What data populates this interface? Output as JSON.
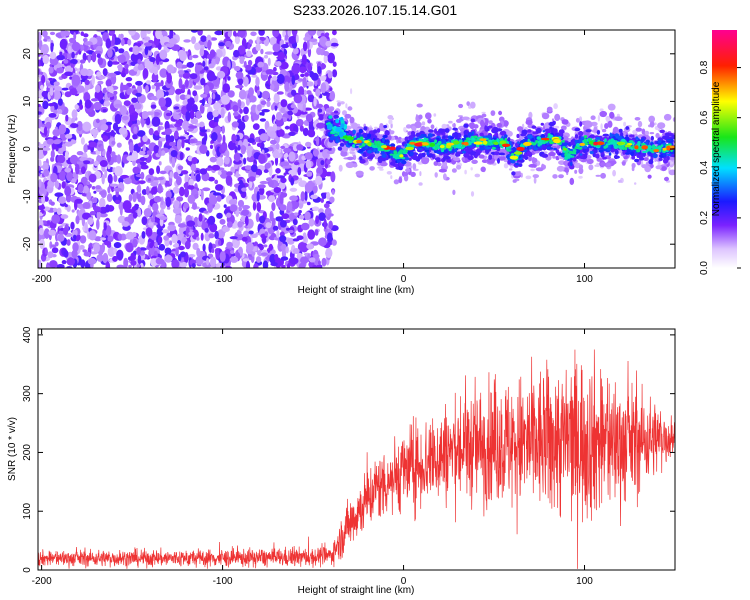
{
  "title": "S233.2026.107.15.14.G01",
  "chart_data": [
    {
      "type": "heatmap",
      "title": "S233.2026.107.15.14.G01",
      "xlabel": "Height of straight line (km)",
      "ylabel": "Frequency (Hz)",
      "xlim": [
        -202,
        150
      ],
      "ylim": [
        -25,
        25
      ],
      "x_ticks": [
        -200,
        -100,
        0,
        100
      ],
      "x_tick_labels": [
        "-200",
        "-100",
        "0",
        "100"
      ],
      "y_ticks": [
        -20,
        -10,
        0,
        10,
        20
      ],
      "y_tick_labels": [
        "-20",
        "-10",
        "0",
        "10",
        "20"
      ],
      "noise_region_x": [
        -202,
        -40
      ],
      "signal_start_x": -42,
      "ridge": {
        "x": [
          -42,
          -38,
          -34,
          -30,
          -26,
          -22,
          -18,
          -14,
          -10,
          -6,
          -3,
          0,
          3,
          6,
          10,
          14,
          18,
          22,
          26,
          30,
          35,
          40,
          45,
          50,
          55,
          58,
          60,
          62,
          64,
          66,
          70,
          75,
          80,
          85,
          88,
          90,
          92,
          96,
          100,
          105,
          110,
          115,
          120,
          125,
          130,
          135,
          140,
          145,
          150
        ],
        "y": [
          5,
          4,
          3,
          2,
          1.5,
          1.2,
          1.0,
          0.8,
          0.6,
          -0.5,
          -1.5,
          -1.0,
          0.5,
          1.0,
          1.2,
          1.0,
          0.8,
          0.6,
          0.8,
          1.2,
          1.5,
          1.8,
          1.6,
          1.4,
          1.2,
          0.5,
          -1.5,
          -2.0,
          -0.5,
          0.8,
          1.2,
          1.5,
          2.0,
          1.8,
          1.2,
          -1.0,
          -1.5,
          0.5,
          1.2,
          1.5,
          1.0,
          1.2,
          1.0,
          0.8,
          0.5,
          0.3,
          0.2,
          0.2,
          0.2
        ]
      },
      "colorbar": {
        "label": "Normalized spectral amplitude",
        "range": [
          0,
          0.95
        ],
        "ticks": [
          0.0,
          0.2,
          0.4,
          0.6,
          0.8
        ],
        "tick_labels": [
          "0.0",
          "0.2",
          "0.4",
          "0.6",
          "0.8"
        ]
      }
    },
    {
      "type": "line",
      "xlabel": "Height of straight line (km)",
      "ylabel": "SNR (10 * v/v)",
      "xlim": [
        -202,
        150
      ],
      "ylim": [
        0,
        410
      ],
      "x_ticks": [
        -200,
        -100,
        0,
        100
      ],
      "x_tick_labels": [
        "-200",
        "-100",
        "0",
        "100"
      ],
      "y_ticks": [
        0,
        100,
        200,
        300,
        400
      ],
      "y_tick_labels": [
        "0",
        "100",
        "200",
        "300",
        "400"
      ],
      "color": "#ee3333",
      "series": [
        {
          "name": "SNR",
          "x": [
            -202,
            -150,
            -100,
            -50,
            -40,
            -35,
            -30,
            -25,
            -20,
            -15,
            -10,
            -5,
            0,
            10,
            20,
            30,
            40,
            50,
            60,
            70,
            80,
            90,
            100,
            110,
            120,
            130,
            140,
            150
          ],
          "y": [
            20,
            20,
            20,
            22,
            25,
            50,
            80,
            100,
            120,
            140,
            150,
            160,
            170,
            180,
            195,
            205,
            210,
            215,
            215,
            215,
            220,
            220,
            225,
            220,
            215,
            220,
            225,
            225
          ]
        }
      ],
      "fluctuation_amplitude": {
        "x": [
          -202,
          -40,
          -30,
          -10,
          20,
          60,
          100,
          130,
          150
        ],
        "y": [
          12,
          15,
          40,
          55,
          75,
          100,
          130,
          80,
          30
        ]
      }
    }
  ]
}
